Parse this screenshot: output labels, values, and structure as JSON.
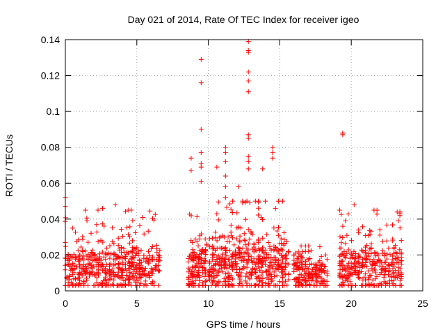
{
  "chart_data": {
    "type": "scatter",
    "title": "Day 021 of 2014, Rate Of TEC Index for receiver igeo",
    "xlabel": "GPS time / hours",
    "ylabel": "ROTI / TECUs",
    "xlim": [
      0,
      25
    ],
    "ylim": [
      0,
      0.14
    ],
    "grid": true,
    "marker": "+",
    "x_ticks": [
      0,
      5,
      10,
      15,
      20,
      25
    ],
    "x_tick_labels": [
      "0",
      "5",
      "10",
      "15",
      "20",
      "25"
    ],
    "y_ticks": [
      0,
      0.02,
      0.04,
      0.06,
      0.08,
      0.1,
      0.12,
      0.14
    ],
    "y_tick_labels": [
      "0",
      "0.02",
      "0.04",
      "0.06",
      "0.08",
      "0.1",
      "0.12",
      "0.14"
    ],
    "series": [
      {
        "name": "ROTI",
        "color": "#ff0000",
        "clusters": [
          {
            "x_start": 0.0,
            "x_end": 6.6,
            "count": 520,
            "baseline": 0.012,
            "spread": 0.01,
            "max": 0.045
          },
          {
            "x_start": 8.6,
            "x_end": 15.6,
            "count": 640,
            "baseline": 0.014,
            "spread": 0.012,
            "max": 0.05
          },
          {
            "x_start": 16.0,
            "x_end": 18.3,
            "count": 200,
            "baseline": 0.01,
            "spread": 0.008,
            "max": 0.025
          },
          {
            "x_start": 19.2,
            "x_end": 23.5,
            "count": 340,
            "baseline": 0.012,
            "spread": 0.01,
            "max": 0.045
          }
        ],
        "notable_points": [
          {
            "x": 0.0,
            "y": 0.052
          },
          {
            "x": 0.0,
            "y": 0.047
          },
          {
            "x": 3.5,
            "y": 0.048
          },
          {
            "x": 2.6,
            "y": 0.046
          },
          {
            "x": 8.8,
            "y": 0.074
          },
          {
            "x": 8.8,
            "y": 0.067
          },
          {
            "x": 9.5,
            "y": 0.129
          },
          {
            "x": 9.5,
            "y": 0.116
          },
          {
            "x": 9.5,
            "y": 0.09
          },
          {
            "x": 9.5,
            "y": 0.077
          },
          {
            "x": 9.5,
            "y": 0.071
          },
          {
            "x": 9.5,
            "y": 0.069
          },
          {
            "x": 9.5,
            "y": 0.061
          },
          {
            "x": 10.6,
            "y": 0.069
          },
          {
            "x": 11.2,
            "y": 0.08
          },
          {
            "x": 11.2,
            "y": 0.077
          },
          {
            "x": 11.2,
            "y": 0.072
          },
          {
            "x": 11.2,
            "y": 0.064
          },
          {
            "x": 11.2,
            "y": 0.058
          },
          {
            "x": 11.2,
            "y": 0.052
          },
          {
            "x": 12.1,
            "y": 0.058
          },
          {
            "x": 12.8,
            "y": 0.139
          },
          {
            "x": 12.8,
            "y": 0.133
          },
          {
            "x": 12.8,
            "y": 0.134
          },
          {
            "x": 12.8,
            "y": 0.122
          },
          {
            "x": 12.8,
            "y": 0.117
          },
          {
            "x": 12.8,
            "y": 0.111
          },
          {
            "x": 12.8,
            "y": 0.087
          },
          {
            "x": 12.8,
            "y": 0.085
          },
          {
            "x": 12.8,
            "y": 0.075
          },
          {
            "x": 12.8,
            "y": 0.072
          },
          {
            "x": 12.8,
            "y": 0.068
          },
          {
            "x": 12.4,
            "y": 0.05
          },
          {
            "x": 12.4,
            "y": 0.049
          },
          {
            "x": 13.8,
            "y": 0.068
          },
          {
            "x": 14.5,
            "y": 0.08
          },
          {
            "x": 14.5,
            "y": 0.077
          },
          {
            "x": 14.5,
            "y": 0.074
          },
          {
            "x": 13.5,
            "y": 0.05
          },
          {
            "x": 19.4,
            "y": 0.088
          },
          {
            "x": 19.4,
            "y": 0.087
          },
          {
            "x": 20.2,
            "y": 0.048
          },
          {
            "x": 23.4,
            "y": 0.044
          },
          {
            "x": 23.4,
            "y": 0.042
          },
          {
            "x": 23.3,
            "y": 0.039
          }
        ]
      }
    ]
  }
}
